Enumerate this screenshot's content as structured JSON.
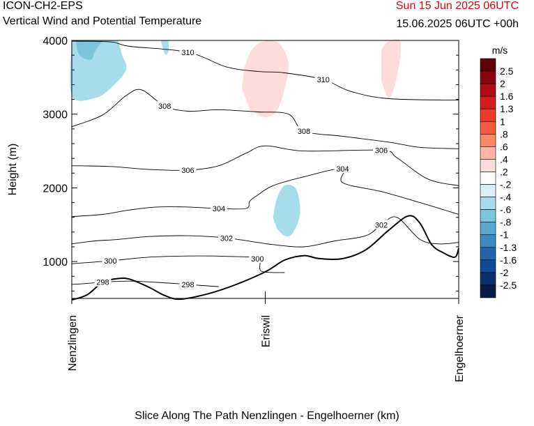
{
  "header": {
    "model": "ICON-CH2-EPS",
    "title": "Vertical Wind and Potential Temperature",
    "run": "Sun 15 Jun 2025 06UTC",
    "valid": "15.06.2025 06UTC +00h"
  },
  "chart_data": {
    "type": "contour",
    "title": "Vertical Wind and Potential Temperature",
    "xlabel": "Slice Along The Path Nenzlingen - Engelhoerner (km)",
    "ylabel": "Height (m)",
    "x_ticks": [
      "Nenzlingen",
      "Eriswil",
      "Engelhoerner"
    ],
    "ylim": [
      500,
      4000
    ],
    "y_ticks": [
      1000,
      2000,
      3000,
      4000
    ],
    "colorbar": {
      "unit": "m/s",
      "labels": [
        "2.5",
        "2",
        "1.6",
        "1.3",
        "1",
        ".8",
        ".6",
        ".4",
        ".2",
        "-.2",
        "-.4",
        "-.6",
        "-.8",
        "-1",
        "-1.3",
        "-1.6",
        "-2",
        "-2.5"
      ],
      "colors": [
        "#5e0008",
        "#8a0410",
        "#b00d17",
        "#d41c1e",
        "#ee3a2b",
        "#f75b3f",
        "#fb8766",
        "#fcb6a6",
        "#fddcd9",
        "#ffffff",
        "#d8f0f8",
        "#a7dcea",
        "#7cc5dc",
        "#5aa8cf",
        "#3d89c2",
        "#2564ad",
        "#0f4b94",
        "#08306b",
        "#051d45"
      ]
    },
    "theta_contours": [
      {
        "label": "298",
        "points": [
          [
            0.0,
            690
          ],
          [
            0.03,
            700
          ],
          [
            0.08,
            720
          ],
          [
            0.15,
            735
          ],
          [
            0.22,
            718
          ],
          [
            0.3,
            690
          ],
          [
            0.35,
            670
          ],
          [
            0.38,
            660
          ]
        ]
      },
      {
        "label": "300",
        "points": [
          [
            0.0,
            970
          ],
          [
            0.05,
            990
          ],
          [
            0.1,
            1010
          ],
          [
            0.2,
            1060
          ],
          [
            0.3,
            1075
          ],
          [
            0.4,
            1070
          ],
          [
            0.48,
            1040
          ],
          [
            0.49,
            870
          ],
          [
            0.55,
            850
          ]
        ]
      },
      {
        "label": "302",
        "points": [
          [
            0.0,
            1240
          ],
          [
            0.06,
            1280
          ],
          [
            0.12,
            1300
          ],
          [
            0.2,
            1340
          ],
          [
            0.3,
            1350
          ],
          [
            0.4,
            1320
          ],
          [
            0.48,
            1260
          ],
          [
            0.52,
            1230
          ],
          [
            0.6,
            1200
          ],
          [
            0.68,
            1280
          ],
          [
            0.76,
            1350
          ],
          [
            0.8,
            1500
          ],
          [
            0.84,
            1600
          ],
          [
            0.9,
            1300
          ],
          [
            0.95,
            1240
          ],
          [
            1.0,
            1260
          ]
        ]
      },
      {
        "label": "304",
        "points": [
          [
            0.0,
            1610
          ],
          [
            0.08,
            1640
          ],
          [
            0.15,
            1700
          ],
          [
            0.22,
            1740
          ],
          [
            0.3,
            1740
          ],
          [
            0.38,
            1720
          ],
          [
            0.45,
            1720
          ],
          [
            0.46,
            1820
          ],
          [
            0.48,
            1900
          ],
          [
            0.52,
            2030
          ],
          [
            0.6,
            2150
          ],
          [
            0.7,
            2260
          ],
          [
            0.7,
            2070
          ],
          [
            0.8,
            1950
          ],
          [
            0.9,
            1800
          ],
          [
            1.0,
            1640
          ]
        ]
      },
      {
        "label": "306",
        "points": [
          [
            0.0,
            2300
          ],
          [
            0.1,
            2290
          ],
          [
            0.2,
            2250
          ],
          [
            0.3,
            2240
          ],
          [
            0.38,
            2300
          ],
          [
            0.45,
            2470
          ],
          [
            0.5,
            2570
          ],
          [
            0.6,
            2500
          ],
          [
            0.8,
            2510
          ],
          [
            0.84,
            2410
          ],
          [
            0.92,
            2120
          ],
          [
            1.0,
            2030
          ]
        ]
      },
      {
        "label": "308",
        "points": [
          [
            0.0,
            2830
          ],
          [
            0.08,
            2990
          ],
          [
            0.14,
            3250
          ],
          [
            0.18,
            3330
          ],
          [
            0.24,
            3110
          ],
          [
            0.3,
            3040
          ],
          [
            0.38,
            3060
          ],
          [
            0.48,
            3030
          ],
          [
            0.56,
            3000
          ],
          [
            0.6,
            2770
          ],
          [
            0.7,
            2700
          ],
          [
            0.82,
            2620
          ],
          [
            0.9,
            2550
          ],
          [
            1.0,
            2530
          ]
        ]
      },
      {
        "label": "310",
        "points": [
          [
            0.0,
            3990
          ],
          [
            0.1,
            3980
          ],
          [
            0.15,
            3920
          ],
          [
            0.3,
            3840
          ],
          [
            0.4,
            3640
          ],
          [
            0.48,
            3580
          ],
          [
            0.55,
            3560
          ],
          [
            0.65,
            3470
          ],
          [
            0.72,
            3310
          ],
          [
            0.82,
            3210
          ],
          [
            1.0,
            3190
          ]
        ]
      }
    ],
    "terrain": [
      [
        0.0,
        480
      ],
      [
        0.04,
        550
      ],
      [
        0.08,
        720
      ],
      [
        0.12,
        770
      ],
      [
        0.15,
        760
      ],
      [
        0.2,
        650
      ],
      [
        0.24,
        540
      ],
      [
        0.28,
        490
      ],
      [
        0.35,
        560
      ],
      [
        0.42,
        680
      ],
      [
        0.5,
        860
      ],
      [
        0.55,
        1020
      ],
      [
        0.6,
        1080
      ],
      [
        0.64,
        1040
      ],
      [
        0.7,
        1040
      ],
      [
        0.76,
        1160
      ],
      [
        0.82,
        1430
      ],
      [
        0.87,
        1620
      ],
      [
        0.9,
        1520
      ],
      [
        0.93,
        1230
      ],
      [
        0.96,
        1120
      ],
      [
        0.99,
        1060
      ],
      [
        1.0,
        1180
      ]
    ],
    "w_areas": [
      {
        "value": "-.4",
        "points": [
          [
            0.0,
            4000
          ],
          [
            0.0,
            3250
          ],
          [
            0.06,
            3220
          ],
          [
            0.1,
            3350
          ],
          [
            0.14,
            3600
          ],
          [
            0.13,
            3800
          ],
          [
            0.12,
            4000
          ]
        ]
      },
      {
        "value": "-.6",
        "points": [
          [
            0.01,
            4000
          ],
          [
            0.02,
            3800
          ],
          [
            0.05,
            3740
          ],
          [
            0.06,
            3850
          ],
          [
            0.08,
            4000
          ]
        ]
      },
      {
        "value": "-.4",
        "points": [
          [
            0.23,
            4000
          ],
          [
            0.24,
            3820
          ],
          [
            0.25,
            3850
          ],
          [
            0.25,
            4000
          ]
        ]
      },
      {
        "value": ".2",
        "points": [
          [
            0.44,
            3350
          ],
          [
            0.45,
            3700
          ],
          [
            0.48,
            3950
          ],
          [
            0.53,
            3980
          ],
          [
            0.56,
            3700
          ],
          [
            0.55,
            3350
          ],
          [
            0.53,
            3050
          ],
          [
            0.5,
            2960
          ],
          [
            0.46,
            3060
          ]
        ]
      },
      {
        "value": ".2",
        "points": [
          [
            0.8,
            3880
          ],
          [
            0.82,
            3990
          ],
          [
            0.85,
            3980
          ],
          [
            0.84,
            3500
          ],
          [
            0.82,
            3220
          ],
          [
            0.8,
            3450
          ]
        ]
      },
      {
        "value": "-.4",
        "points": [
          [
            0.52,
            1600
          ],
          [
            0.53,
            1850
          ],
          [
            0.55,
            2030
          ],
          [
            0.58,
            1980
          ],
          [
            0.59,
            1650
          ],
          [
            0.57,
            1380
          ],
          [
            0.55,
            1350
          ],
          [
            0.53,
            1450
          ]
        ]
      }
    ]
  }
}
